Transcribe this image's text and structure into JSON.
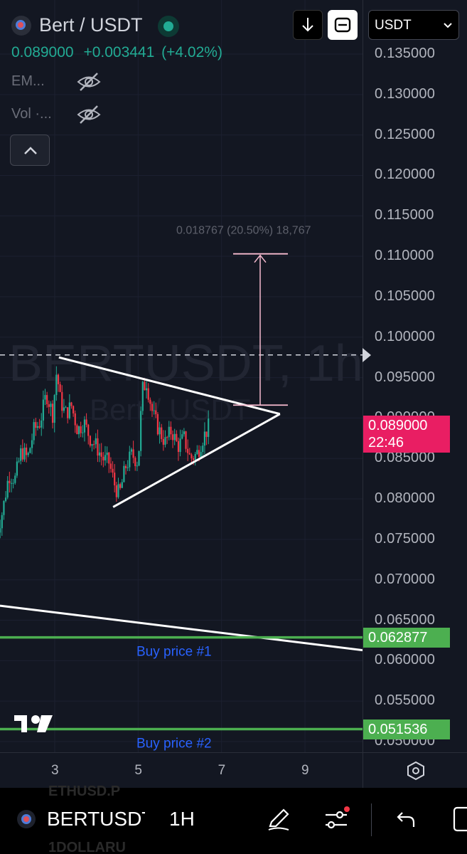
{
  "header": {
    "symbol_title": "Bert / USDT",
    "last_price": "0.089000",
    "change_abs": "+0.003441",
    "change_pct": "(+4.02%)",
    "indicators": [
      {
        "label": "EM..."
      },
      {
        "label": "Vol ·..."
      }
    ],
    "status_color": "#22ab94"
  },
  "toolbar": {
    "currency_select": "USDT"
  },
  "watermark": {
    "main": "BERTUSDT, 1h",
    "sub": "Bert / USDT"
  },
  "price_axis": {
    "ticks": [
      "0.135000",
      "0.130000",
      "0.125000",
      "0.120000",
      "0.115000",
      "0.110000",
      "0.105000",
      "0.100000",
      "0.095000",
      "0.090000",
      "0.085000",
      "0.080000",
      "0.075000",
      "0.070000",
      "0.065000",
      "0.060000",
      "0.055000",
      "0.050000"
    ],
    "current_price": "0.089000",
    "countdown": "22:46",
    "level_1": "0.062877",
    "level_2": "0.051536",
    "current_color": "#e91e63",
    "level_color": "#4caf50"
  },
  "annotations": {
    "measure_label": "0.018767 (20.50%) 18,767",
    "buy_1": "Buy price #1",
    "buy_2": "Buy price #2"
  },
  "time_axis": {
    "labels": [
      "3",
      "5",
      "7",
      "9"
    ]
  },
  "bottom_bar": {
    "symbol": "BERTUSDT",
    "interval": "1H",
    "ghost_top": "ETHUSD.P",
    "ghost_bottom": "1DOLLARU"
  },
  "chart_data": {
    "type": "candlestick",
    "title": "Bert / USDT",
    "y_range": [
      0.048,
      0.138
    ],
    "x_ticks": [
      "3",
      "5",
      "7",
      "9"
    ],
    "close_points": [
      [
        1.6,
        0.0755
      ],
      [
        1.75,
        0.0785
      ],
      [
        1.9,
        0.083
      ],
      [
        2.05,
        0.0825
      ],
      [
        2.2,
        0.086
      ],
      [
        2.35,
        0.085
      ],
      [
        2.5,
        0.0885
      ],
      [
        2.65,
        0.0895
      ],
      [
        2.8,
        0.093
      ],
      [
        2.95,
        0.0905
      ],
      [
        3.05,
        0.096
      ],
      [
        3.12,
        0.0925
      ],
      [
        3.25,
        0.0905
      ],
      [
        3.4,
        0.0915
      ],
      [
        3.55,
        0.0885
      ],
      [
        3.7,
        0.0895
      ],
      [
        3.85,
        0.0875
      ],
      [
        4.0,
        0.0865
      ],
      [
        4.15,
        0.085
      ],
      [
        4.3,
        0.0845
      ],
      [
        4.45,
        0.0815
      ],
      [
        4.55,
        0.0805
      ],
      [
        4.7,
        0.084
      ],
      [
        4.85,
        0.0855
      ],
      [
        5.0,
        0.0845
      ],
      [
        5.1,
        0.0935
      ],
      [
        5.2,
        0.0945
      ],
      [
        5.35,
        0.0905
      ],
      [
        5.5,
        0.0885
      ],
      [
        5.65,
        0.087
      ],
      [
        5.8,
        0.0885
      ],
      [
        5.95,
        0.0865
      ],
      [
        6.1,
        0.0875
      ],
      [
        6.25,
        0.085
      ],
      [
        6.4,
        0.0855
      ],
      [
        6.55,
        0.0875
      ],
      [
        6.7,
        0.089
      ]
    ],
    "triangle": {
      "upper": [
        [
          3.1,
          0.0975
        ],
        [
          8.4,
          0.0905
        ]
      ],
      "lower": [
        [
          4.4,
          0.079
        ],
        [
          8.4,
          0.0905
        ]
      ]
    },
    "long_trendline": [
      [
        1.6,
        0.067
      ],
      [
        9.8,
        0.0612
      ]
    ],
    "target_projection": {
      "from": 0.0916,
      "to": 0.1103,
      "change": "0.018767 (20.50%) 18,767"
    },
    "dashed_line": 0.0978,
    "buy_levels": [
      0.062877,
      0.051536
    ]
  }
}
